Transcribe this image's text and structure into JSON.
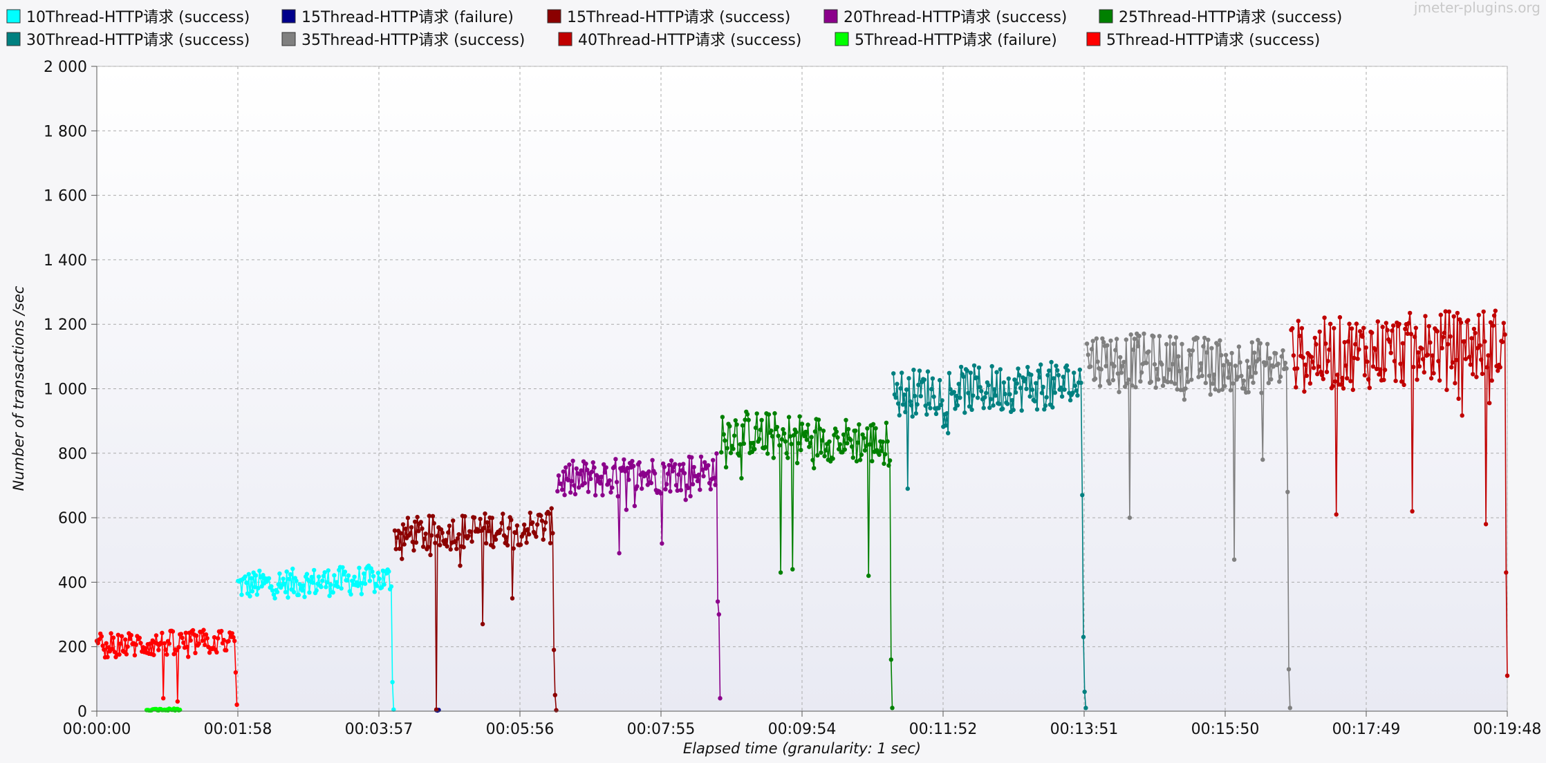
{
  "watermark": "jmeter-plugins.org",
  "chart_data": {
    "type": "line",
    "xlabel": "Elapsed time (granularity: 1 sec)",
    "ylabel": "Number of transactions /sec",
    "ylim": [
      0,
      2000
    ],
    "yticks": [
      "0",
      "200",
      "400",
      "600",
      "800",
      "1 000",
      "1 200",
      "1 400",
      "1 600",
      "1 800",
      "2 000"
    ],
    "xlim": [
      0,
      1188
    ],
    "xticks": [
      {
        "t": 0,
        "label": "00:00:00"
      },
      {
        "t": 118.8,
        "label": "00:01:58"
      },
      {
        "t": 237.6,
        "label": "00:03:57"
      },
      {
        "t": 356.4,
        "label": "00:05:56"
      },
      {
        "t": 475.2,
        "label": "00:07:55"
      },
      {
        "t": 594,
        "label": "00:09:54"
      },
      {
        "t": 712.8,
        "label": "00:11:52"
      },
      {
        "t": 831.6,
        "label": "00:13:51"
      },
      {
        "t": 950.4,
        "label": "00:15:50"
      },
      {
        "t": 1069.2,
        "label": "00:17:49"
      },
      {
        "t": 1188,
        "label": "00:19:48"
      }
    ],
    "grid": true,
    "legend_position": "top",
    "series": [
      {
        "name": "10Thread-HTTP请求 (success)",
        "color": "#00ffff",
        "t0": 119,
        "t1": 250,
        "base": 400,
        "noise": 45,
        "drift": 20,
        "end": [
          90,
          5
        ],
        "dips": []
      },
      {
        "name": "15Thread-HTTP请求 (failure)",
        "color": "#00008b",
        "t0": 286,
        "t1": 288,
        "base": 3,
        "noise": 1,
        "drift": 0,
        "end": [],
        "dips": []
      },
      {
        "name": "15Thread-HTTP请求 (success)",
        "color": "#8b0000",
        "t0": 251,
        "t1": 387,
        "base": 560,
        "noise": 55,
        "drift": 30,
        "end": [
          190,
          50,
          3
        ],
        "dips": [
          [
            286,
            5
          ],
          [
            325,
            270
          ],
          [
            350,
            350
          ]
        ]
      },
      {
        "name": "20Thread-HTTP请求 (success)",
        "color": "#8b008b",
        "t0": 388,
        "t1": 525,
        "base": 730,
        "noise": 60,
        "drift": 30,
        "end": [
          340,
          300,
          40
        ],
        "dips": [
          [
            440,
            490
          ],
          [
            476,
            520
          ]
        ]
      },
      {
        "name": "25Thread-HTTP请求 (success)",
        "color": "#008000",
        "t0": 526,
        "t1": 670,
        "base": 850,
        "noise": 70,
        "drift": -40,
        "end": [
          160,
          10
        ],
        "dips": [
          [
            576,
            430
          ],
          [
            586,
            440
          ],
          [
            650,
            420
          ]
        ]
      },
      {
        "name": "30Thread-HTTP请求 (success)",
        "color": "#008080",
        "t0": 671,
        "t1": 833,
        "base": 1000,
        "noise": 75,
        "drift": 30,
        "end": [
          670,
          230,
          60,
          10
        ],
        "dips": [
          [
            683,
            690
          ]
        ]
      },
      {
        "name": "35Thread-HTTP请求 (success)",
        "color": "#808080",
        "t0": 834,
        "t1": 1005,
        "base": 1080,
        "noise": 85,
        "drift": -30,
        "end": [
          680,
          130,
          10
        ],
        "dips": [
          [
            870,
            600
          ],
          [
            958,
            470
          ],
          [
            982,
            780
          ]
        ]
      },
      {
        "name": "40Thread-HTTP请求 (success)",
        "color": "#c00000",
        "t0": 1006,
        "t1": 1188,
        "base": 1120,
        "noise": 115,
        "drift": 40,
        "end": [
          430,
          110
        ],
        "dips": [
          [
            1044,
            610
          ],
          [
            1108,
            620
          ],
          [
            1170,
            580
          ]
        ]
      },
      {
        "name": "5Thread-HTTP请求 (failure)",
        "color": "#00ff00",
        "t0": 42,
        "t1": 70,
        "base": 5,
        "noise": 3,
        "drift": 0,
        "end": [],
        "dips": []
      },
      {
        "name": "5Thread-HTTP请求 (success)",
        "color": "#ff0000",
        "t0": 0,
        "t1": 118,
        "base": 210,
        "noise": 40,
        "drift": 15,
        "end": [
          120,
          20
        ],
        "dips": [
          [
            56,
            40
          ],
          [
            68,
            30
          ]
        ]
      }
    ]
  }
}
